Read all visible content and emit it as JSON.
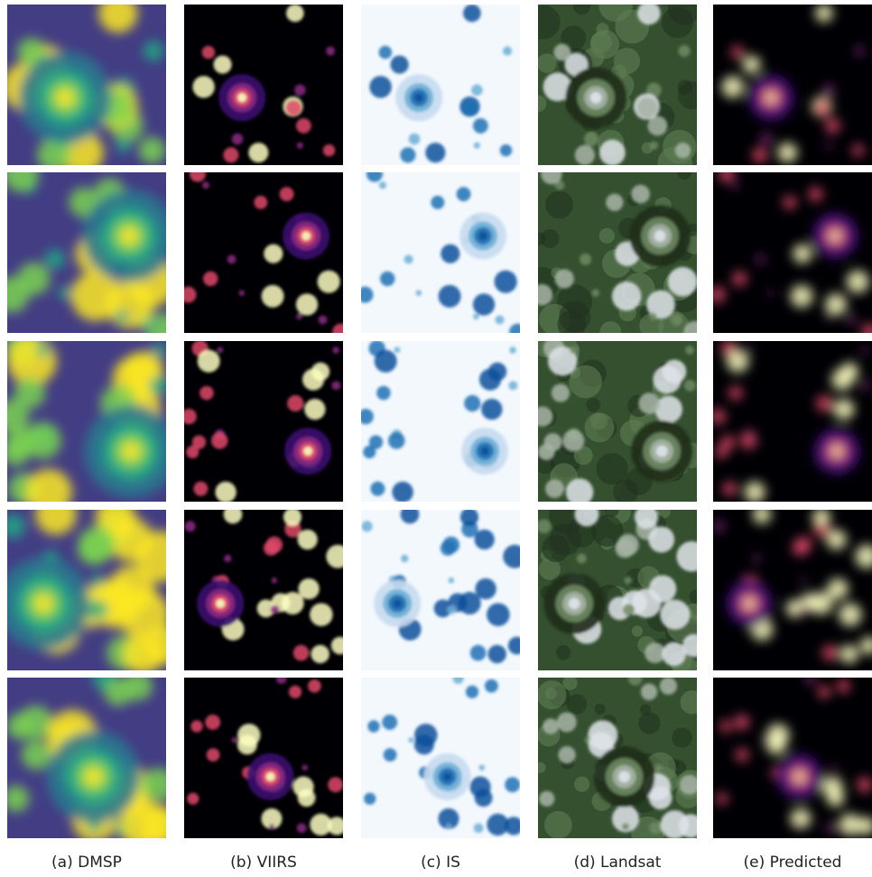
{
  "columns": [
    "(a) DMSP",
    "(b) VIIRS",
    "(c) IS",
    "(d) Landsat",
    "(e) Predicted"
  ]
}
